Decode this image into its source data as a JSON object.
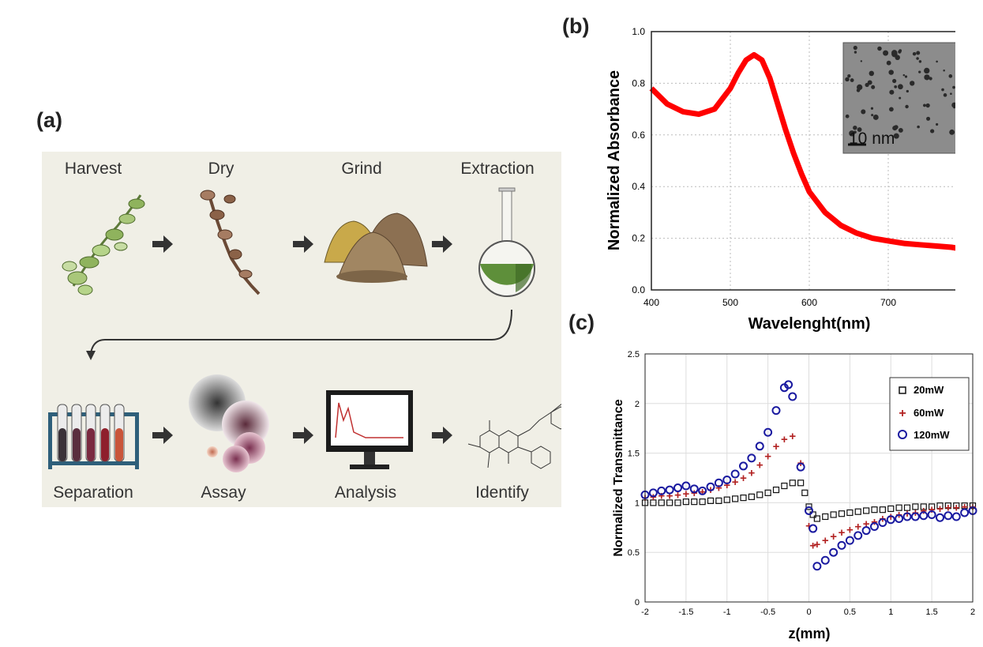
{
  "panels": {
    "a": "(a)",
    "b": "(b)",
    "c": "(c)"
  },
  "flow": {
    "top_steps": [
      "Harvest",
      "Dry",
      "Grind",
      "Extraction"
    ],
    "bottom_steps": [
      "Separation",
      "Assay",
      "Analysis",
      "Identify"
    ]
  },
  "colors": {
    "absorbance_line": "#ff0000",
    "s20": "#111111",
    "s60": "#b22222",
    "s120": "#1a1aa0",
    "flow_bg": "#f0efe6"
  },
  "chart_data": [
    {
      "type": "line",
      "title": "",
      "xlabel": "Wavelenght(nm)",
      "ylabel": "Normalized Absorbance",
      "xlim": [
        400,
        800
      ],
      "ylim": [
        0.0,
        1.0
      ],
      "xticks": [
        "400",
        "500",
        "600",
        "700",
        "800"
      ],
      "yticks": [
        "0.0",
        "0.2",
        "0.4",
        "0.6",
        "0.8",
        "1.0"
      ],
      "grid": true,
      "inset_label": "10 nm",
      "x": [
        400,
        420,
        440,
        460,
        480,
        500,
        510,
        520,
        530,
        540,
        550,
        560,
        570,
        580,
        590,
        600,
        620,
        640,
        660,
        680,
        700,
        720,
        740,
        760,
        780,
        800
      ],
      "values": [
        0.78,
        0.72,
        0.69,
        0.68,
        0.7,
        0.78,
        0.84,
        0.89,
        0.91,
        0.89,
        0.82,
        0.72,
        0.62,
        0.53,
        0.45,
        0.38,
        0.3,
        0.25,
        0.22,
        0.2,
        0.19,
        0.18,
        0.175,
        0.17,
        0.165,
        0.155
      ]
    },
    {
      "type": "scatter",
      "title": "",
      "xlabel": "z(mm)",
      "ylabel": "Normalized Transmittance",
      "xlim": [
        -2,
        2
      ],
      "ylim": [
        0,
        2.5
      ],
      "xticks": [
        "-2",
        "-1.5",
        "-1",
        "-0.5",
        "0",
        "0.5",
        "1",
        "1.5",
        "2"
      ],
      "yticks": [
        "0",
        "0.5",
        "1",
        "1.5",
        "2",
        "2.5"
      ],
      "grid": true,
      "legend": "top-right",
      "series": [
        {
          "name": "20mW",
          "x": [
            -2,
            -1.9,
            -1.8,
            -1.7,
            -1.6,
            -1.5,
            -1.4,
            -1.3,
            -1.2,
            -1.1,
            -1.0,
            -0.9,
            -0.8,
            -0.7,
            -0.6,
            -0.5,
            -0.4,
            -0.3,
            -0.2,
            -0.1,
            -0.05,
            0.0,
            0.05,
            0.1,
            0.2,
            0.3,
            0.4,
            0.5,
            0.6,
            0.7,
            0.8,
            0.9,
            1.0,
            1.1,
            1.2,
            1.3,
            1.4,
            1.5,
            1.6,
            1.7,
            1.8,
            1.9,
            2.0
          ],
          "y": [
            1.0,
            1.0,
            1.0,
            1.0,
            1.0,
            1.01,
            1.01,
            1.01,
            1.02,
            1.02,
            1.03,
            1.04,
            1.05,
            1.06,
            1.08,
            1.1,
            1.13,
            1.17,
            1.2,
            1.2,
            1.1,
            0.96,
            0.88,
            0.84,
            0.86,
            0.88,
            0.89,
            0.9,
            0.91,
            0.92,
            0.93,
            0.93,
            0.94,
            0.95,
            0.95,
            0.96,
            0.96,
            0.96,
            0.97,
            0.97,
            0.97,
            0.97,
            0.97
          ]
        },
        {
          "name": "60mW",
          "x": [
            -2,
            -1.9,
            -1.8,
            -1.7,
            -1.6,
            -1.5,
            -1.4,
            -1.3,
            -1.2,
            -1.1,
            -1.0,
            -0.9,
            -0.8,
            -0.7,
            -0.6,
            -0.5,
            -0.4,
            -0.3,
            -0.2,
            -0.1,
            0.0,
            0.05,
            0.1,
            0.2,
            0.3,
            0.4,
            0.5,
            0.6,
            0.7,
            0.8,
            0.9,
            1.0,
            1.1,
            1.2,
            1.3,
            1.4,
            1.5,
            1.6,
            1.7,
            1.8,
            1.9,
            2.0
          ],
          "y": [
            1.05,
            1.06,
            1.07,
            1.07,
            1.08,
            1.09,
            1.1,
            1.11,
            1.13,
            1.15,
            1.18,
            1.21,
            1.25,
            1.3,
            1.38,
            1.47,
            1.57,
            1.64,
            1.67,
            1.4,
            0.77,
            0.57,
            0.58,
            0.62,
            0.66,
            0.7,
            0.73,
            0.76,
            0.79,
            0.81,
            0.84,
            0.86,
            0.88,
            0.89,
            0.9,
            0.92,
            0.93,
            0.94,
            0.95,
            0.95,
            0.96,
            0.96
          ]
        },
        {
          "name": "120mW",
          "x": [
            -2,
            -1.9,
            -1.8,
            -1.7,
            -1.6,
            -1.5,
            -1.4,
            -1.3,
            -1.2,
            -1.1,
            -1.0,
            -0.9,
            -0.8,
            -0.7,
            -0.6,
            -0.5,
            -0.4,
            -0.3,
            -0.25,
            -0.2,
            -0.1,
            0.0,
            0.05,
            0.1,
            0.2,
            0.3,
            0.4,
            0.5,
            0.6,
            0.7,
            0.8,
            0.9,
            1.0,
            1.1,
            1.2,
            1.3,
            1.4,
            1.5,
            1.6,
            1.7,
            1.8,
            1.9,
            2.0
          ],
          "y": [
            1.08,
            1.1,
            1.12,
            1.13,
            1.15,
            1.17,
            1.14,
            1.12,
            1.16,
            1.2,
            1.23,
            1.29,
            1.37,
            1.45,
            1.57,
            1.71,
            1.93,
            2.16,
            2.19,
            2.07,
            1.36,
            0.92,
            0.74,
            0.36,
            0.42,
            0.5,
            0.57,
            0.62,
            0.67,
            0.72,
            0.76,
            0.8,
            0.83,
            0.84,
            0.86,
            0.86,
            0.87,
            0.88,
            0.85,
            0.87,
            0.86,
            0.9,
            0.92
          ]
        }
      ]
    }
  ]
}
